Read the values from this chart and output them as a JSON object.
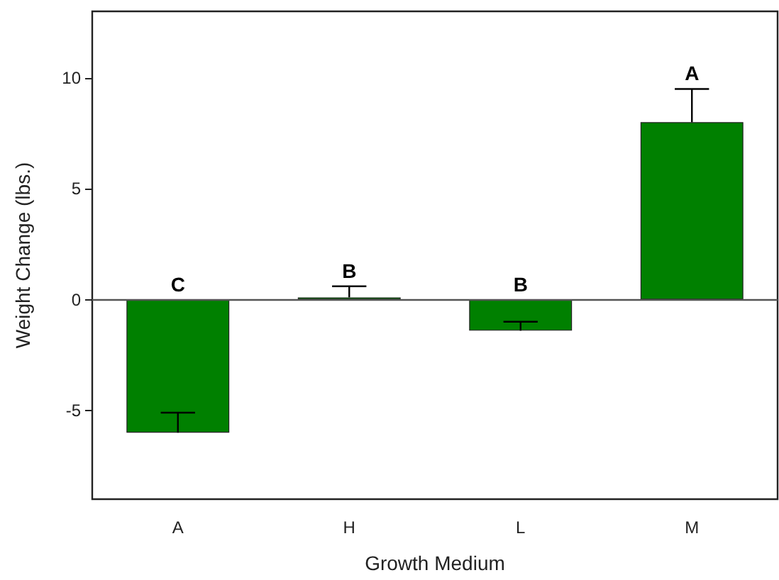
{
  "chart_data": {
    "type": "bar",
    "xlabel": "Growth Medium",
    "ylabel": "Weight Change (lbs.)",
    "categories": [
      "A",
      "H",
      "L",
      "M"
    ],
    "values": [
      -6.0,
      0.1,
      -1.4,
      8.0
    ],
    "errors": [
      [
        -6.0,
        -5.1
      ],
      [
        0.1,
        0.6
      ],
      [
        -1.4,
        -1.0
      ],
      [
        8.0,
        9.5
      ]
    ],
    "color": "#008000",
    "ylim": [
      -9,
      13
    ],
    "yticks": [
      -5,
      0,
      5,
      10
    ],
    "ref_lines": [
      {
        "axis": "y",
        "value": 0,
        "color": "#555555"
      }
    ],
    "annotations": [
      "C",
      "B",
      "B",
      "A"
    ],
    "grid": false
  }
}
